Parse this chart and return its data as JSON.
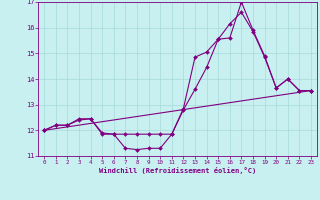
{
  "xlabel": "Windchill (Refroidissement éolien,°C)",
  "bg_color": "#c8f0f0",
  "line_color": "#800080",
  "grid_color": "#a8dada",
  "xlim": [
    -0.5,
    23.5
  ],
  "ylim": [
    11,
    17
  ],
  "yticks": [
    11,
    12,
    13,
    14,
    15,
    16,
    17
  ],
  "xticks": [
    0,
    1,
    2,
    3,
    4,
    5,
    6,
    7,
    8,
    9,
    10,
    11,
    12,
    13,
    14,
    15,
    16,
    17,
    18,
    19,
    20,
    21,
    22,
    23
  ],
  "series1_x": [
    0,
    1,
    2,
    3,
    4,
    5,
    6,
    7,
    8,
    9,
    10,
    11,
    12,
    13,
    14,
    15,
    16,
    17,
    18,
    19,
    20,
    21,
    22,
    23
  ],
  "series1_y": [
    12.0,
    12.2,
    12.2,
    12.4,
    12.45,
    11.9,
    11.85,
    11.3,
    11.25,
    11.3,
    11.3,
    11.85,
    12.8,
    13.6,
    14.45,
    15.55,
    16.15,
    16.6,
    15.85,
    14.85,
    13.65,
    14.0,
    13.55,
    13.55
  ],
  "series2_x": [
    0,
    1,
    2,
    3,
    4,
    5,
    6,
    7,
    8,
    9,
    10,
    11,
    12,
    13,
    14,
    15,
    16,
    17,
    18,
    19,
    20,
    21,
    22,
    23
  ],
  "series2_y": [
    12.0,
    12.2,
    12.2,
    12.45,
    12.45,
    11.85,
    11.85,
    11.85,
    11.85,
    11.85,
    11.85,
    11.85,
    12.85,
    14.85,
    15.05,
    15.55,
    15.6,
    17.0,
    15.9,
    14.9,
    13.65,
    14.0,
    13.55,
    13.55
  ],
  "series3_x": [
    0,
    23
  ],
  "series3_y": [
    12.0,
    13.55
  ],
  "xlabel_color": "#800080",
  "tick_color": "#800080"
}
